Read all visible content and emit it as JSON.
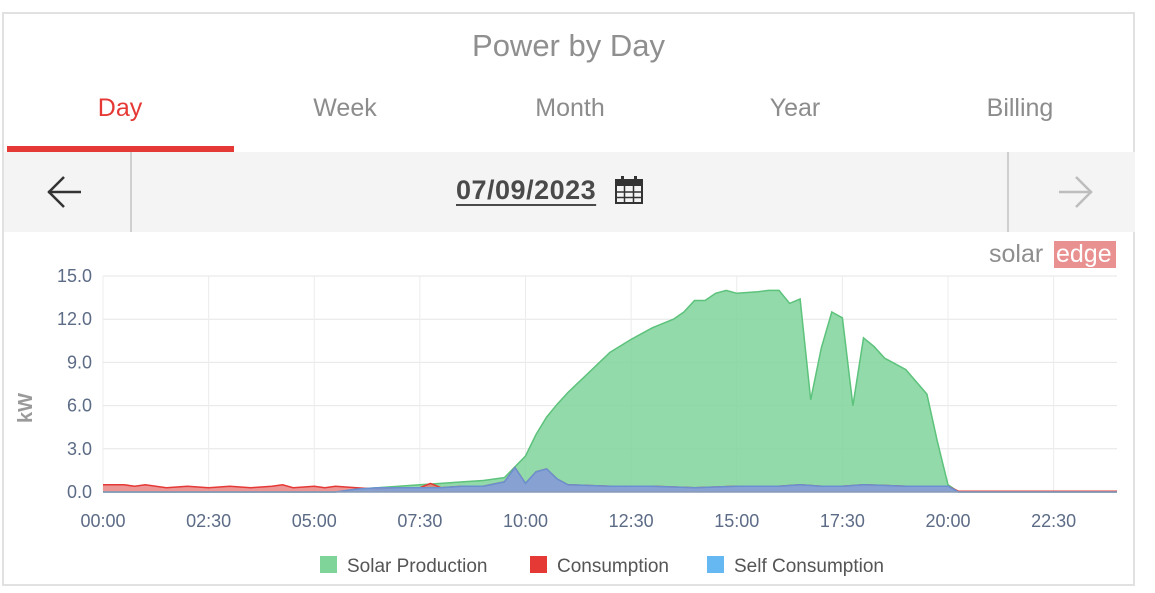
{
  "header": {
    "title": "Power by Day"
  },
  "tabs": [
    {
      "label": "Day",
      "active": true
    },
    {
      "label": "Week",
      "active": false
    },
    {
      "label": "Month",
      "active": false
    },
    {
      "label": "Year",
      "active": false
    },
    {
      "label": "Billing",
      "active": false
    }
  ],
  "datebar": {
    "date": "07/09/2023",
    "prev_icon": "arrow-left-icon",
    "next_icon": "arrow-right-icon",
    "calendar_icon": "calendar-icon"
  },
  "logo": {
    "part1": "solar",
    "part2": "edge",
    "accent": "#e99090"
  },
  "colors": {
    "accent": "#e53935",
    "solar": "#7fd49a",
    "solar_line": "#5cc27c",
    "consumption": "#e53935",
    "self": "#7aa6e0",
    "self_legend": "#66b8f2"
  },
  "chart_data": {
    "type": "area",
    "ylabel": "kW",
    "ylim": [
      0,
      15
    ],
    "yticks": [
      "0.0",
      "3.0",
      "6.0",
      "9.0",
      "12.0",
      "15.0"
    ],
    "xlim": [
      "00:00",
      "24:00"
    ],
    "xticks": [
      "00:00",
      "02:30",
      "05:00",
      "07:30",
      "10:00",
      "12:30",
      "15:00",
      "17:30",
      "20:00",
      "22:30"
    ],
    "grid": true,
    "legend_position": "bottom",
    "series": [
      {
        "name": "Solar Production",
        "color": "#7fd49a",
        "points": [
          [
            "00:00",
            0
          ],
          [
            "05:30",
            0
          ],
          [
            "06:00",
            0.2
          ],
          [
            "06:30",
            0.3
          ],
          [
            "07:00",
            0.4
          ],
          [
            "07:30",
            0.5
          ],
          [
            "08:00",
            0.6
          ],
          [
            "08:30",
            0.7
          ],
          [
            "09:00",
            0.8
          ],
          [
            "09:30",
            1.0
          ],
          [
            "10:00",
            2.5
          ],
          [
            "10:15",
            4.0
          ],
          [
            "10:30",
            5.2
          ],
          [
            "10:45",
            6.1
          ],
          [
            "11:00",
            6.9
          ],
          [
            "11:15",
            7.6
          ],
          [
            "11:30",
            8.3
          ],
          [
            "11:45",
            9.0
          ],
          [
            "12:00",
            9.7
          ],
          [
            "12:30",
            10.6
          ],
          [
            "13:00",
            11.4
          ],
          [
            "13:30",
            12.0
          ],
          [
            "13:45",
            12.5
          ],
          [
            "14:00",
            13.3
          ],
          [
            "14:15",
            13.3
          ],
          [
            "14:30",
            13.8
          ],
          [
            "14:45",
            14.0
          ],
          [
            "15:00",
            13.8
          ],
          [
            "15:30",
            13.9
          ],
          [
            "15:45",
            14.0
          ],
          [
            "16:00",
            14.0
          ],
          [
            "16:15",
            13.1
          ],
          [
            "16:30",
            13.4
          ],
          [
            "16:45",
            6.4
          ],
          [
            "17:00",
            10.0
          ],
          [
            "17:15",
            12.5
          ],
          [
            "17:30",
            12.1
          ],
          [
            "17:45",
            6.0
          ],
          [
            "18:00",
            10.7
          ],
          [
            "18:15",
            10.1
          ],
          [
            "18:30",
            9.3
          ],
          [
            "19:00",
            8.5
          ],
          [
            "19:30",
            6.8
          ],
          [
            "19:45",
            3.5
          ],
          [
            "20:00",
            0.5
          ],
          [
            "20:15",
            0
          ],
          [
            "24:00",
            0
          ]
        ]
      },
      {
        "name": "Consumption",
        "color": "#e53935",
        "points": [
          [
            "00:00",
            0.5
          ],
          [
            "00:30",
            0.5
          ],
          [
            "00:45",
            0.4
          ],
          [
            "01:00",
            0.5
          ],
          [
            "01:30",
            0.3
          ],
          [
            "02:00",
            0.4
          ],
          [
            "02:30",
            0.3
          ],
          [
            "03:00",
            0.4
          ],
          [
            "03:30",
            0.3
          ],
          [
            "04:00",
            0.4
          ],
          [
            "04:15",
            0.5
          ],
          [
            "04:30",
            0.3
          ],
          [
            "05:00",
            0.4
          ],
          [
            "05:15",
            0.3
          ],
          [
            "05:30",
            0.4
          ],
          [
            "06:00",
            0.3
          ],
          [
            "06:30",
            0.2
          ],
          [
            "07:00",
            0.3
          ],
          [
            "07:30",
            0.3
          ],
          [
            "07:45",
            0.6
          ],
          [
            "08:00",
            0.3
          ],
          [
            "08:30",
            0.4
          ],
          [
            "09:00",
            0.4
          ],
          [
            "09:30",
            0.7
          ],
          [
            "09:45",
            1.7
          ],
          [
            "10:00",
            0.6
          ],
          [
            "10:15",
            1.4
          ],
          [
            "10:30",
            1.6
          ],
          [
            "10:45",
            0.9
          ],
          [
            "11:00",
            0.5
          ],
          [
            "12:00",
            0.4
          ],
          [
            "13:00",
            0.4
          ],
          [
            "14:00",
            0.3
          ],
          [
            "15:00",
            0.4
          ],
          [
            "16:00",
            0.4
          ],
          [
            "16:30",
            0.5
          ],
          [
            "17:00",
            0.4
          ],
          [
            "17:30",
            0.4
          ],
          [
            "18:00",
            0.5
          ],
          [
            "19:00",
            0.4
          ],
          [
            "20:00",
            0.4
          ],
          [
            "20:15",
            0.05
          ],
          [
            "24:00",
            0.05
          ]
        ]
      },
      {
        "name": "Self Consumption",
        "color": "#7aa6e0",
        "points": [
          [
            "00:00",
            0
          ],
          [
            "05:30",
            0
          ],
          [
            "06:00",
            0.2
          ],
          [
            "06:30",
            0.3
          ],
          [
            "07:00",
            0.3
          ],
          [
            "07:30",
            0.3
          ],
          [
            "08:00",
            0.3
          ],
          [
            "08:30",
            0.4
          ],
          [
            "09:00",
            0.4
          ],
          [
            "09:30",
            0.7
          ],
          [
            "09:45",
            1.7
          ],
          [
            "10:00",
            0.6
          ],
          [
            "10:15",
            1.4
          ],
          [
            "10:30",
            1.6
          ],
          [
            "10:45",
            0.9
          ],
          [
            "11:00",
            0.5
          ],
          [
            "12:00",
            0.4
          ],
          [
            "13:00",
            0.4
          ],
          [
            "14:00",
            0.3
          ],
          [
            "15:00",
            0.4
          ],
          [
            "16:00",
            0.4
          ],
          [
            "16:30",
            0.5
          ],
          [
            "17:00",
            0.4
          ],
          [
            "17:30",
            0.4
          ],
          [
            "18:00",
            0.5
          ],
          [
            "19:00",
            0.4
          ],
          [
            "20:00",
            0.4
          ],
          [
            "20:15",
            0
          ],
          [
            "24:00",
            0
          ]
        ]
      }
    ],
    "legend": [
      {
        "name": "Solar Production",
        "color": "#7fd49a"
      },
      {
        "name": "Consumption",
        "color": "#e53935"
      },
      {
        "name": "Self Consumption",
        "color": "#66b8f2"
      }
    ]
  }
}
